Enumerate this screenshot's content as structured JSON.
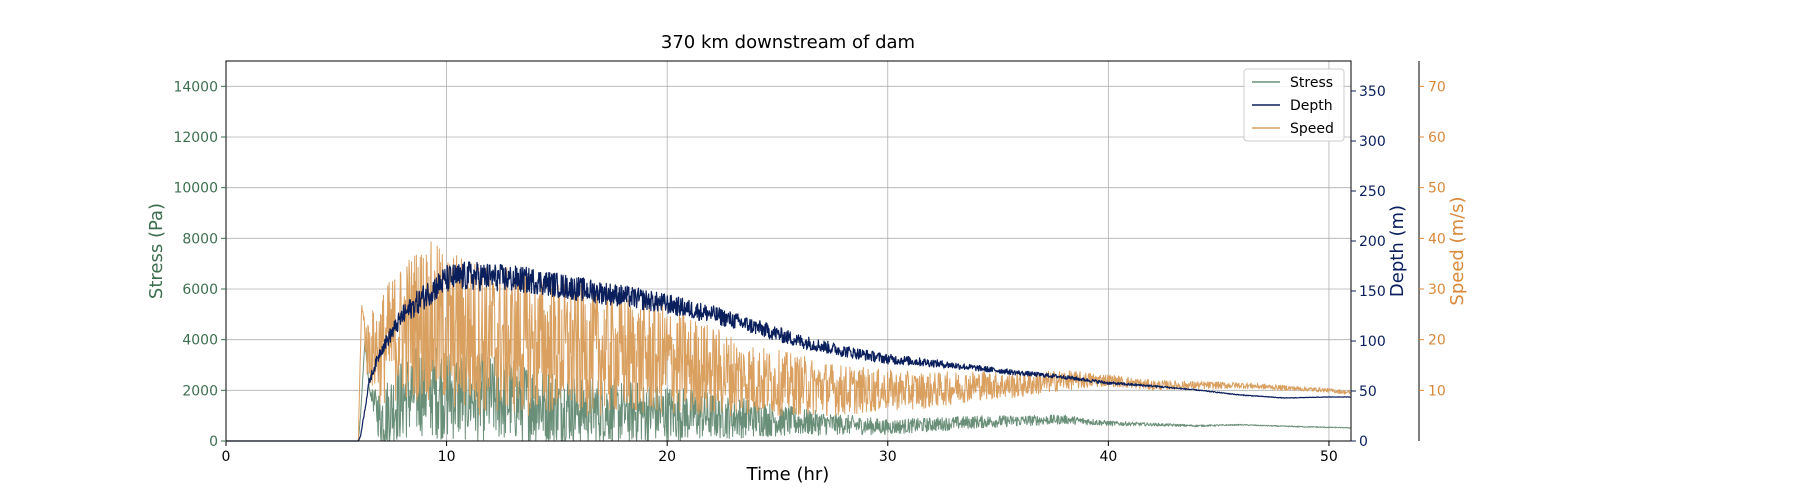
{
  "chart_data": {
    "type": "line",
    "title": "370 km downstream of dam",
    "xlabel": "Time (hr)",
    "xlim": [
      0,
      51
    ],
    "xticks": [
      0,
      10,
      20,
      30,
      40,
      50
    ],
    "grid": true,
    "legend_position": "top-right",
    "axes": [
      {
        "id": "stress",
        "side": "left",
        "label": "Stress (Pa)",
        "color": "#3d6e4f",
        "ylim": [
          0,
          15000
        ],
        "ticks": [
          0,
          2000,
          4000,
          6000,
          8000,
          10000,
          12000,
          14000
        ]
      },
      {
        "id": "depth",
        "side": "right",
        "label": "Depth (m)",
        "color": "#0a1f5c",
        "ylim": [
          0,
          380
        ],
        "ticks": [
          0,
          50,
          100,
          150,
          200,
          250,
          300,
          350
        ]
      },
      {
        "id": "speed",
        "side": "right-outer",
        "label": "Speed (m/s)",
        "color": "#d9893b",
        "ylim": [
          0,
          75
        ],
        "ticks": [
          10,
          20,
          30,
          40,
          50,
          60,
          70
        ]
      }
    ],
    "series": [
      {
        "name": "Stress",
        "axis": "stress",
        "color": "#6a8f78",
        "x": [
          0,
          6,
          6.1,
          6.3,
          6.5,
          7,
          8,
          9,
          10,
          11,
          12,
          14,
          16,
          18,
          20,
          22,
          24,
          26,
          28,
          30,
          32,
          34,
          36,
          38,
          40,
          42,
          44,
          46,
          48,
          50,
          51
        ],
        "y": [
          0,
          0,
          1000,
          4000,
          2000,
          900,
          1700,
          2100,
          1900,
          1800,
          1700,
          1500,
          1300,
          1150,
          1100,
          1000,
          900,
          750,
          650,
          550,
          650,
          750,
          800,
          850,
          700,
          650,
          600,
          640,
          580,
          540,
          520
        ],
        "noise": [
          0,
          0,
          0,
          0,
          0,
          1200,
          1700,
          1900,
          1900,
          1800,
          1700,
          1600,
          1400,
          1250,
          1150,
          950,
          750,
          550,
          400,
          300,
          280,
          250,
          220,
          180,
          100,
          60,
          40,
          20,
          20,
          20,
          15
        ]
      },
      {
        "name": "Depth",
        "axis": "depth",
        "color": "#0a1f5c",
        "x": [
          0,
          6,
          6.1,
          6.5,
          7,
          8,
          9,
          10,
          11,
          12,
          14,
          16,
          18,
          20,
          22,
          24,
          26,
          28,
          30,
          32,
          34,
          36,
          38,
          40,
          42,
          44,
          46,
          48,
          50,
          51
        ],
        "y": [
          0,
          0,
          5,
          60,
          90,
          125,
          145,
          162,
          165,
          164,
          160,
          152,
          145,
          137,
          127,
          114,
          100,
          90,
          82,
          78,
          73,
          68,
          64,
          58,
          55,
          51,
          46,
          43,
          44,
          44
        ],
        "noise": [
          0,
          0,
          0,
          4,
          6,
          10,
          13,
          14,
          15,
          14,
          13,
          12,
          11,
          10,
          9,
          8,
          7,
          6,
          5,
          4,
          3,
          2.5,
          2,
          1.5,
          1,
          0.5,
          0.4,
          0.3,
          0.2,
          0.2
        ]
      },
      {
        "name": "Speed",
        "axis": "speed",
        "color": "#d9a060",
        "x": [
          0,
          6,
          6.05,
          6.15,
          6.4,
          7,
          8,
          9,
          10,
          11,
          12,
          14,
          16,
          18,
          20,
          22,
          24,
          26,
          28,
          30,
          32,
          34,
          36,
          38,
          40,
          42,
          44,
          46,
          48,
          50,
          51
        ],
        "y": [
          0,
          0,
          10,
          27,
          18,
          18,
          22,
          24,
          22,
          21,
          20,
          19,
          18,
          17,
          16,
          14,
          12,
          11,
          10,
          10,
          10,
          11,
          11,
          12,
          12,
          11,
          11,
          11,
          10.5,
          10,
          9.5
        ],
        "noise": [
          0,
          0,
          0,
          0,
          6,
          11,
          14,
          16,
          16,
          16,
          15,
          14,
          13,
          12,
          11,
          9,
          7,
          6,
          5,
          4,
          3.5,
          3,
          2.5,
          2,
          1.2,
          1,
          0.8,
          0.6,
          0.5,
          0.4,
          0.4
        ]
      }
    ]
  }
}
